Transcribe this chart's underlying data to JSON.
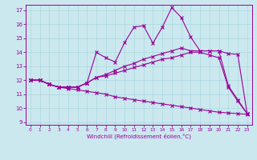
{
  "bg_color": "#cce8ef",
  "line_color": "#990099",
  "grid_color": "#aad8df",
  "xlabel": "Windchill (Refroidissement éolien,°C)",
  "xlim": [
    -0.5,
    23.5
  ],
  "ylim": [
    8.8,
    17.4
  ],
  "xticks": [
    0,
    1,
    2,
    3,
    4,
    5,
    6,
    7,
    8,
    9,
    10,
    11,
    12,
    13,
    14,
    15,
    16,
    17,
    18,
    19,
    20,
    21,
    22,
    23
  ],
  "yticks": [
    9,
    10,
    11,
    12,
    13,
    14,
    15,
    16,
    17
  ],
  "line1_x": [
    0,
    1,
    2,
    3,
    4,
    5,
    6,
    7,
    8,
    9,
    10,
    11,
    12,
    13,
    14,
    15,
    16,
    17,
    18,
    19,
    20,
    21,
    22,
    23
  ],
  "line1_y": [
    12,
    12,
    11.7,
    11.5,
    11.5,
    11.5,
    11.8,
    14.0,
    13.6,
    13.3,
    14.7,
    15.8,
    15.9,
    14.65,
    15.8,
    17.2,
    16.5,
    15.1,
    14.1,
    14.1,
    14.1,
    11.6,
    10.6,
    9.6
  ],
  "line2_x": [
    0,
    1,
    2,
    3,
    4,
    5,
    6,
    7,
    8,
    9,
    10,
    11,
    12,
    13,
    14,
    15,
    16,
    17,
    18,
    19,
    20,
    21,
    22,
    23
  ],
  "line2_y": [
    12,
    12,
    11.7,
    11.5,
    11.5,
    11.5,
    11.8,
    12.2,
    12.4,
    12.7,
    13.0,
    13.2,
    13.5,
    13.7,
    13.9,
    14.1,
    14.3,
    14.1,
    14.1,
    14.1,
    14.1,
    13.9,
    13.85,
    9.6
  ],
  "line3_x": [
    0,
    1,
    2,
    3,
    4,
    5,
    6,
    7,
    8,
    9,
    10,
    11,
    12,
    13,
    14,
    15,
    16,
    17,
    18,
    19,
    20,
    21,
    22,
    23
  ],
  "line3_y": [
    12,
    12,
    11.7,
    11.5,
    11.5,
    11.5,
    11.8,
    12.2,
    12.3,
    12.5,
    12.7,
    12.9,
    13.1,
    13.3,
    13.5,
    13.6,
    13.8,
    14.0,
    14.0,
    13.8,
    13.6,
    11.5,
    10.5,
    9.6
  ],
  "line4_x": [
    0,
    1,
    2,
    3,
    4,
    5,
    6,
    7,
    8,
    9,
    10,
    11,
    12,
    13,
    14,
    15,
    16,
    17,
    18,
    19,
    20,
    21,
    22,
    23
  ],
  "line4_y": [
    12,
    12,
    11.7,
    11.5,
    11.4,
    11.3,
    11.2,
    11.1,
    11.0,
    10.8,
    10.7,
    10.6,
    10.5,
    10.4,
    10.3,
    10.2,
    10.1,
    10.0,
    9.9,
    9.8,
    9.7,
    9.65,
    9.6,
    9.55
  ]
}
